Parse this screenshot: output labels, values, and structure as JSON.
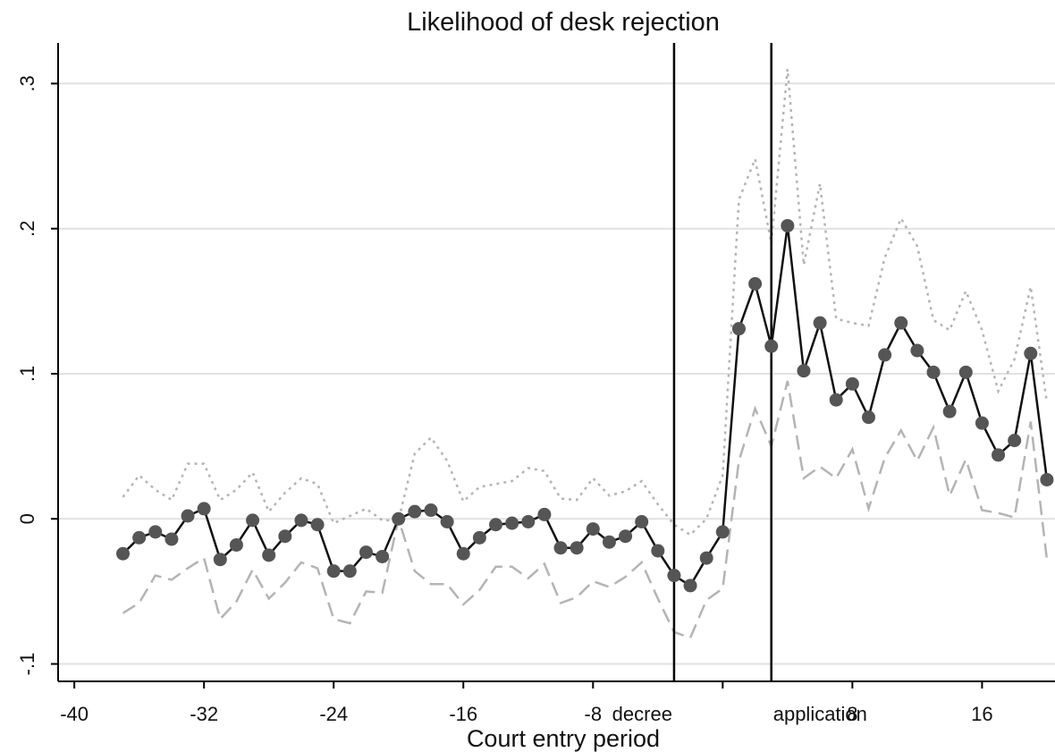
{
  "chart_data": {
    "type": "line",
    "title": "Likelihood of desk rejection",
    "xlabel": "Court entry period",
    "ylabel": "",
    "xlim": [
      -41,
      20.5
    ],
    "ylim": [
      -0.112,
      0.328
    ],
    "x_ticks": [
      -40,
      -32,
      -24,
      -16,
      -8,
      8,
      16
    ],
    "x_tick_labels": [
      "-40",
      "-32",
      "-24",
      "-16",
      "-8",
      "8",
      "16"
    ],
    "y_ticks": [
      -0.1,
      0,
      0.1,
      0.2,
      0.3
    ],
    "y_tick_labels": [
      "-.1",
      "0",
      ".1",
      ".2",
      ".3"
    ],
    "grid": "horizontal",
    "legend": "none",
    "vertical_lines": [
      {
        "x": -3,
        "label": "decree"
      },
      {
        "x": 3,
        "label": "application"
      }
    ],
    "x": [
      -37,
      -36,
      -35,
      -34,
      -33,
      -32,
      -31,
      -30,
      -29,
      -28,
      -27,
      -26,
      -25,
      -24,
      -23,
      -22,
      -21,
      -20,
      -19,
      -18,
      -17,
      -16,
      -15,
      -14,
      -13,
      -12,
      -11,
      -10,
      -9,
      -8,
      -7,
      -6,
      -5,
      -4,
      -3,
      -2,
      -1,
      0,
      1,
      2,
      3,
      4,
      5,
      6,
      7,
      8,
      9,
      10,
      11,
      12,
      13,
      14,
      15,
      16,
      17,
      18,
      19,
      20
    ],
    "series": [
      {
        "role": "estimate",
        "color": "#111111",
        "marker_color": "#555555",
        "values": [
          -0.024,
          -0.013,
          -0.009,
          -0.014,
          0.002,
          0.007,
          -0.028,
          -0.018,
          -0.001,
          -0.025,
          -0.012,
          -0.001,
          -0.004,
          -0.036,
          -0.036,
          -0.023,
          -0.026,
          0.0,
          0.005,
          0.006,
          -0.002,
          -0.024,
          -0.013,
          -0.004,
          -0.003,
          -0.002,
          0.003,
          -0.02,
          -0.02,
          -0.007,
          -0.016,
          -0.012,
          -0.002,
          -0.022,
          -0.039,
          -0.046,
          -0.027,
          -0.009,
          0.131,
          0.162,
          0.119,
          0.202,
          0.102,
          0.135,
          0.082,
          0.093,
          0.07,
          0.113,
          0.135,
          0.116,
          0.101,
          0.074,
          0.101,
          0.066,
          0.044,
          0.054,
          0.114,
          0.027
        ]
      },
      {
        "role": "upper-bound",
        "style": "dotted",
        "color": "#b4b4b4",
        "values": [
          0.015,
          0.03,
          0.02,
          0.013,
          0.038,
          0.038,
          0.013,
          0.02,
          0.032,
          0.005,
          0.018,
          0.028,
          0.024,
          -0.003,
          0.002,
          0.007,
          -0.001,
          -0.001,
          0.045,
          0.056,
          0.04,
          0.012,
          0.022,
          0.024,
          0.026,
          0.035,
          0.033,
          0.014,
          0.013,
          0.028,
          0.016,
          0.019,
          0.026,
          0.01,
          -0.004,
          -0.011,
          0.0,
          0.03,
          0.22,
          0.248,
          0.19,
          0.31,
          0.175,
          0.231,
          0.138,
          0.135,
          0.133,
          0.18,
          0.207,
          0.188,
          0.137,
          0.13,
          0.157,
          0.13,
          0.088,
          0.11,
          0.16,
          0.08
        ]
      },
      {
        "role": "lower-bound",
        "style": "dashed",
        "color": "#b4b4b4",
        "values": [
          -0.065,
          -0.058,
          -0.039,
          -0.042,
          -0.034,
          -0.027,
          -0.069,
          -0.057,
          -0.035,
          -0.055,
          -0.044,
          -0.03,
          -0.034,
          -0.069,
          -0.072,
          -0.05,
          -0.051,
          0.0,
          -0.036,
          -0.045,
          -0.045,
          -0.059,
          -0.049,
          -0.033,
          -0.033,
          -0.041,
          -0.031,
          -0.058,
          -0.054,
          -0.043,
          -0.047,
          -0.04,
          -0.03,
          -0.055,
          -0.078,
          -0.082,
          -0.056,
          -0.048,
          0.04,
          0.076,
          0.05,
          0.095,
          0.028,
          0.036,
          0.028,
          0.048,
          0.007,
          0.042,
          0.061,
          0.04,
          0.063,
          0.016,
          0.041,
          0.006,
          0.004,
          0.001,
          0.067,
          -0.028
        ]
      }
    ]
  }
}
